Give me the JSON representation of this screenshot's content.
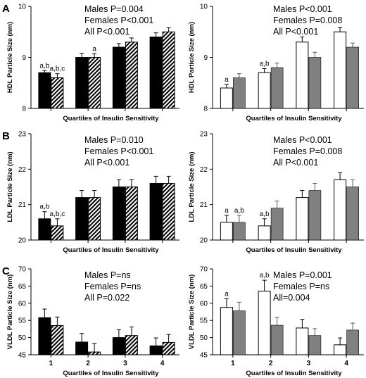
{
  "colors": {
    "male_fill": "#000000",
    "female_fill_hatched": "#ffffff",
    "male_fill_right": "#ffffff",
    "female_fill_right": "#808080",
    "axis": "#000000"
  },
  "chart_data": [
    {
      "id": "A-left",
      "panel_letter": "A",
      "type": "bar",
      "categories": [
        "1",
        "2",
        "3",
        "4"
      ],
      "show_xtick_labels": false,
      "ylabel": "HDL Particle Size (nm)",
      "xlabel": "Quartiles of Insulin Sensitivity",
      "ylim": [
        8,
        10
      ],
      "yticks": [
        "8",
        "9",
        "10"
      ],
      "style": "hatched",
      "grid": false,
      "series": [
        {
          "values": [
            8.7,
            9.0,
            9.2,
            9.4
          ],
          "errors": [
            0.04,
            0.08,
            0.07,
            0.08
          ]
        },
        {
          "values": [
            8.6,
            9.0,
            9.3,
            9.5
          ],
          "errors": [
            0.08,
            0.07,
            0.08,
            0.08
          ]
        }
      ],
      "bar_labels": [
        [
          "a,b",
          "",
          "",
          ""
        ],
        [
          "a,b,c",
          "a",
          "",
          ""
        ]
      ],
      "annotations": [
        "Males P=0.004",
        "Females P<0.001",
        "All P<0.001"
      ]
    },
    {
      "id": "A-right",
      "panel_letter": "",
      "type": "bar",
      "categories": [
        "1",
        "2",
        "3",
        "4"
      ],
      "show_xtick_labels": false,
      "ylabel": "HDL Particle Size (nm)",
      "xlabel": "Quartiles of Insulin Sensitivity",
      "ylim": [
        8,
        10
      ],
      "yticks": [
        "8",
        "9",
        "10"
      ],
      "style": "gray",
      "grid": false,
      "series": [
        {
          "values": [
            8.4,
            8.7,
            9.3,
            9.5
          ],
          "errors": [
            0.07,
            0.08,
            0.1,
            0.08
          ]
        },
        {
          "values": [
            8.6,
            8.8,
            9.0,
            9.2
          ],
          "errors": [
            0.08,
            0.09,
            0.1,
            0.08
          ]
        }
      ],
      "bar_labels": [
        [
          "a",
          "a,b",
          "",
          ""
        ],
        [
          "",
          "",
          "",
          ""
        ]
      ],
      "annotations": [
        "Males P<0.001",
        "Females P=0.008",
        "All P<0.001"
      ]
    },
    {
      "id": "B-left",
      "panel_letter": "B",
      "type": "bar",
      "categories": [
        "1",
        "2",
        "3",
        "4"
      ],
      "show_xtick_labels": false,
      "ylabel": "LDL Particle Size (nm)",
      "xlabel": "Quartiles of Insulin Sensitivity",
      "ylim": [
        20,
        23
      ],
      "yticks": [
        "20",
        "21",
        "22",
        "23"
      ],
      "style": "hatched",
      "grid": false,
      "series": [
        {
          "values": [
            20.6,
            21.2,
            21.5,
            21.6
          ],
          "errors": [
            0.2,
            0.2,
            0.2,
            0.2
          ]
        },
        {
          "values": [
            20.4,
            21.2,
            21.5,
            21.6
          ],
          "errors": [
            0.2,
            0.2,
            0.2,
            0.2
          ]
        }
      ],
      "bar_labels": [
        [
          "a,b",
          "",
          "",
          ""
        ],
        [
          "a,b,c",
          "",
          "",
          ""
        ]
      ],
      "annotations": [
        "Males P=0.010",
        "Females P<0.001",
        "All P<0.001"
      ]
    },
    {
      "id": "B-right",
      "panel_letter": "",
      "type": "bar",
      "categories": [
        "1",
        "2",
        "3",
        "4"
      ],
      "show_xtick_labels": false,
      "ylabel": "LDL Particle Size (nm)",
      "xlabel": "Quartiles of Insulin Sensitivity",
      "ylim": [
        20,
        23
      ],
      "yticks": [
        "20",
        "21",
        "22",
        "23"
      ],
      "style": "gray",
      "grid": false,
      "series": [
        {
          "values": [
            20.5,
            20.4,
            21.2,
            21.7
          ],
          "errors": [
            0.2,
            0.2,
            0.2,
            0.2
          ]
        },
        {
          "values": [
            20.5,
            20.9,
            21.4,
            21.5
          ],
          "errors": [
            0.2,
            0.2,
            0.2,
            0.2
          ]
        }
      ],
      "bar_labels": [
        [
          "a",
          "a,b",
          "",
          ""
        ],
        [
          "a,b",
          "",
          "",
          ""
        ]
      ],
      "annotations": [
        "Males P<0.001",
        "Females P=0.008",
        "All P<0.001"
      ]
    },
    {
      "id": "C-left",
      "panel_letter": "C",
      "type": "bar",
      "categories": [
        "1",
        "2",
        "3",
        "4"
      ],
      "show_xtick_labels": true,
      "ylabel": "VLDL Particle Size (nm)",
      "xlabel": "Quartiles of Insulin Sensitivity",
      "ylim": [
        45,
        70
      ],
      "yticks": [
        "45",
        "50",
        "55",
        "60",
        "65",
        "70"
      ],
      "style": "hatched",
      "grid": false,
      "series": [
        {
          "values": [
            55.8,
            48.7,
            50.0,
            47.6
          ],
          "errors": [
            2.5,
            2.5,
            2.3,
            2.3
          ]
        },
        {
          "values": [
            53.5,
            45.8,
            50.6,
            48.6
          ],
          "errors": [
            2.5,
            2.5,
            2.5,
            2.3
          ]
        }
      ],
      "bar_labels": [
        [
          "",
          "",
          "",
          ""
        ],
        [
          "",
          "",
          "",
          ""
        ]
      ],
      "annotations": [
        "Males P=ns",
        "Females P=ns",
        "All P=0.022"
      ]
    },
    {
      "id": "C-right",
      "panel_letter": "",
      "type": "bar",
      "categories": [
        "1",
        "2",
        "3",
        "4"
      ],
      "show_xtick_labels": true,
      "ylabel": "VLDL Particle Size (nm)",
      "xlabel": "Quartiles of Insulin Sensitivity",
      "ylim": [
        45,
        70
      ],
      "yticks": [
        "45",
        "50",
        "55",
        "60",
        "65",
        "70"
      ],
      "style": "gray",
      "grid": false,
      "series": [
        {
          "values": [
            58.8,
            63.5,
            52.8,
            47.9
          ],
          "errors": [
            2.5,
            3.2,
            2.5,
            2.0
          ]
        },
        {
          "values": [
            57.8,
            53.6,
            50.6,
            52.2
          ],
          "errors": [
            2.5,
            2.3,
            2.0,
            2.0
          ]
        }
      ],
      "bar_labels": [
        [
          "a",
          "a,b",
          "",
          ""
        ],
        [
          "",
          "",
          "",
          ""
        ]
      ],
      "annotations": [
        "Males P=0.001",
        "Females P=ns",
        "All=0.004"
      ]
    }
  ]
}
